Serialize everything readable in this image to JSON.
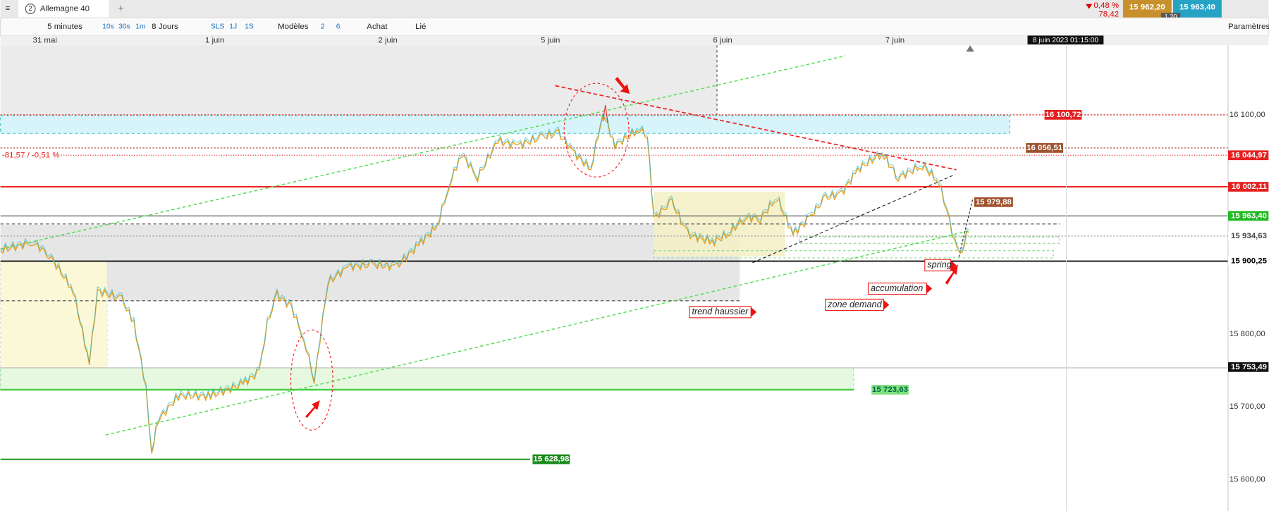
{
  "toolbar": {
    "tab_number": "2",
    "tab_title": "Allemagne 40",
    "add_tab": "+",
    "timeframe": "5 minutes",
    "intervals": [
      "10s",
      "30s",
      "1m"
    ],
    "period": "8 Jours",
    "ranges": [
      "SLS",
      "1J",
      "1S"
    ],
    "models": "Modèles",
    "counts": [
      "2",
      "6"
    ],
    "buy": "Achat",
    "linked": "Lié",
    "settings": "Paramètres"
  },
  "quote": {
    "change_pct": "0,48 %",
    "change": "78,42",
    "bid": "15 962,20",
    "ask": "15 963,40",
    "spread": "1,20"
  },
  "time_axis": {
    "labels": [
      "31 mai",
      "1 juin",
      "2 juin",
      "5 juin",
      "6 juin",
      "7 juin"
    ],
    "cursor": "8 juin 2023 01:15:00"
  },
  "price_axis": {
    "ticks": [
      "16 100,00",
      "15 800,00",
      "15 700,00",
      "15 600,00"
    ],
    "tags": [
      "16 044,97",
      "16 002,11",
      "15 963,40",
      "15 934,63",
      "15 900,25",
      "15 753,49"
    ]
  },
  "levels": {
    "top": "16 100,72",
    "upper": "16 056,51",
    "mid": "15 979,88",
    "demand": "15 723,63",
    "low": "15 628,98",
    "change": "-81,57 / -0,51 %"
  },
  "annotations": [
    "spring",
    "accumulation",
    "zone demand",
    "trend haussier"
  ]
}
